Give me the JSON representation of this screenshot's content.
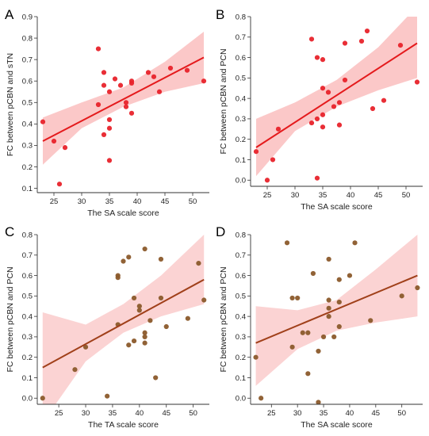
{
  "chart_data": [
    {
      "type": "scatter",
      "panel": "A",
      "xlabel": "The SA scale score",
      "ylabel": "FC between pCBN and sTN",
      "xlim": [
        22,
        53
      ],
      "ylim": [
        0.08,
        0.9
      ],
      "xticks": [
        25,
        30,
        35,
        40,
        45,
        50
      ],
      "yticks": [
        0.1,
        0.2,
        0.3,
        0.4,
        0.5,
        0.6,
        0.7,
        0.8,
        0.9
      ],
      "tick_labels_x": [
        "25",
        "30",
        "35",
        "40",
        "45",
        "50"
      ],
      "tick_labels_y": [
        "0.1",
        "0.2",
        "0.3",
        "0.4",
        "0.5",
        "0.6",
        "0.7",
        "0.8",
        "0.9"
      ],
      "point_color": "#e8232b",
      "line_color": "#e41a1c",
      "band_color": "#f9b6b6",
      "points": [
        [
          23,
          0.41
        ],
        [
          25,
          0.32
        ],
        [
          26,
          0.12
        ],
        [
          27,
          0.29
        ],
        [
          33,
          0.75
        ],
        [
          33,
          0.49
        ],
        [
          34,
          0.64
        ],
        [
          34,
          0.58
        ],
        [
          34,
          0.35
        ],
        [
          35,
          0.55
        ],
        [
          35,
          0.42
        ],
        [
          35,
          0.38
        ],
        [
          35,
          0.23
        ],
        [
          36,
          0.61
        ],
        [
          37,
          0.58
        ],
        [
          38,
          0.5
        ],
        [
          38,
          0.48
        ],
        [
          39,
          0.6
        ],
        [
          39,
          0.59
        ],
        [
          39,
          0.45
        ],
        [
          42,
          0.64
        ],
        [
          43,
          0.62
        ],
        [
          44,
          0.55
        ],
        [
          46,
          0.66
        ],
        [
          49,
          0.65
        ],
        [
          52,
          0.6
        ]
      ],
      "fit": {
        "x": [
          23,
          52
        ],
        "y": [
          0.32,
          0.71
        ]
      },
      "band": {
        "x": [
          23,
          30,
          37.5,
          45,
          52
        ],
        "lower": [
          0.21,
          0.38,
          0.48,
          0.55,
          0.59
        ],
        "upper": [
          0.43,
          0.5,
          0.57,
          0.69,
          0.83
        ]
      }
    },
    {
      "type": "scatter",
      "panel": "B",
      "xlabel": "The SA scale score",
      "ylabel": "FC between pCBN and PCN",
      "xlim": [
        22,
        53
      ],
      "ylim": [
        -0.03,
        0.8
      ],
      "xticks": [
        25,
        30,
        35,
        40,
        45,
        50
      ],
      "yticks": [
        0.0,
        0.1,
        0.2,
        0.3,
        0.4,
        0.5,
        0.6,
        0.7,
        0.8
      ],
      "tick_labels_x": [
        "25",
        "30",
        "35",
        "40",
        "45",
        "50"
      ],
      "tick_labels_y": [
        "0.0",
        "0.1",
        "0.2",
        "0.3",
        "0.4",
        "0.5",
        "0.6",
        "0.7",
        "0.8"
      ],
      "point_color": "#e8232b",
      "line_color": "#e41a1c",
      "band_color": "#f9b6b6",
      "points": [
        [
          23,
          0.14
        ],
        [
          25,
          0.0
        ],
        [
          26,
          0.1
        ],
        [
          27,
          0.25
        ],
        [
          33,
          0.69
        ],
        [
          33,
          0.28
        ],
        [
          34,
          0.6
        ],
        [
          34,
          0.3
        ],
        [
          34,
          0.01
        ],
        [
          35,
          0.59
        ],
        [
          35,
          0.45
        ],
        [
          35,
          0.32
        ],
        [
          35,
          0.26
        ],
        [
          36,
          0.43
        ],
        [
          37,
          0.36
        ],
        [
          38,
          0.38
        ],
        [
          38,
          0.27
        ],
        [
          39,
          0.67
        ],
        [
          39,
          0.49
        ],
        [
          42,
          0.68
        ],
        [
          43,
          0.73
        ],
        [
          44,
          0.35
        ],
        [
          46,
          0.39
        ],
        [
          49,
          0.66
        ],
        [
          52,
          0.48
        ]
      ],
      "fit": {
        "x": [
          23,
          52
        ],
        "y": [
          0.16,
          0.67
        ]
      },
      "band": {
        "x": [
          23,
          30,
          37.5,
          45,
          52
        ],
        "lower": [
          0.02,
          0.24,
          0.36,
          0.44,
          0.5
        ],
        "upper": [
          0.3,
          0.38,
          0.49,
          0.65,
          0.85
        ]
      }
    },
    {
      "type": "scatter",
      "panel": "C",
      "xlabel": "The TA scale score",
      "ylabel": "FC between pCBN and PCN",
      "xlim": [
        21,
        53
      ],
      "ylim": [
        -0.03,
        0.8
      ],
      "xticks": [
        25,
        30,
        35,
        40,
        45,
        50
      ],
      "yticks": [
        0.0,
        0.1,
        0.2,
        0.3,
        0.4,
        0.5,
        0.6,
        0.7,
        0.8
      ],
      "tick_labels_x": [
        "25",
        "30",
        "35",
        "40",
        "45",
        "50"
      ],
      "tick_labels_y": [
        "0.0",
        "0.1",
        "0.2",
        "0.3",
        "0.4",
        "0.5",
        "0.6",
        "0.7",
        "0.8"
      ],
      "point_color": "#8b5a2b",
      "line_color": "#a0401a",
      "band_color": "#f9c4c4",
      "points": [
        [
          22,
          0.0
        ],
        [
          28,
          0.14
        ],
        [
          30,
          0.25
        ],
        [
          34,
          0.01
        ],
        [
          36,
          0.6
        ],
        [
          36,
          0.59
        ],
        [
          36,
          0.36
        ],
        [
          37,
          0.67
        ],
        [
          38,
          0.69
        ],
        [
          38,
          0.26
        ],
        [
          39,
          0.49
        ],
        [
          39,
          0.28
        ],
        [
          40,
          0.45
        ],
        [
          40,
          0.43
        ],
        [
          41,
          0.73
        ],
        [
          41,
          0.32
        ],
        [
          41,
          0.3
        ],
        [
          41,
          0.27
        ],
        [
          42,
          0.38
        ],
        [
          43,
          0.1
        ],
        [
          44,
          0.68
        ],
        [
          44,
          0.49
        ],
        [
          45,
          0.35
        ],
        [
          49,
          0.39
        ],
        [
          51,
          0.66
        ],
        [
          52,
          0.48
        ]
      ],
      "fit": {
        "x": [
          22,
          52
        ],
        "y": [
          0.15,
          0.58
        ]
      },
      "band": {
        "x": [
          22,
          30,
          37,
          44,
          52
        ],
        "lower": [
          -0.12,
          0.18,
          0.32,
          0.4,
          0.46
        ],
        "upper": [
          0.42,
          0.36,
          0.46,
          0.6,
          0.8
        ]
      }
    },
    {
      "type": "scatter",
      "panel": "D",
      "xlabel": "The SA scale score",
      "ylabel": "FC between pCBN and PCN",
      "xlim": [
        21,
        54
      ],
      "ylim": [
        -0.03,
        0.8
      ],
      "xticks": [
        25,
        30,
        35,
        40,
        45,
        50
      ],
      "yticks": [
        0.0,
        0.1,
        0.2,
        0.3,
        0.4,
        0.5,
        0.6,
        0.7,
        0.8
      ],
      "tick_labels_x": [
        "25",
        "30",
        "35",
        "40",
        "45",
        "50"
      ],
      "tick_labels_y": [
        "0.0",
        "0.1",
        "0.2",
        "0.3",
        "0.4",
        "0.5",
        "0.6",
        "0.7",
        "0.8"
      ],
      "point_color": "#8b5a2b",
      "line_color": "#a0401a",
      "band_color": "#f9c4c4",
      "points": [
        [
          22,
          0.2
        ],
        [
          23,
          0.0
        ],
        [
          28,
          0.76
        ],
        [
          29,
          0.49
        ],
        [
          29,
          0.25
        ],
        [
          30,
          0.49
        ],
        [
          31,
          0.32
        ],
        [
          32,
          0.32
        ],
        [
          32,
          0.12
        ],
        [
          33,
          0.61
        ],
        [
          34,
          0.23
        ],
        [
          34,
          -0.02
        ],
        [
          35,
          0.3
        ],
        [
          36,
          0.68
        ],
        [
          36,
          0.48
        ],
        [
          36,
          0.44
        ],
        [
          36,
          0.4
        ],
        [
          37,
          0.3
        ],
        [
          38,
          0.58
        ],
        [
          38,
          0.47
        ],
        [
          38,
          0.35
        ],
        [
          40,
          0.6
        ],
        [
          41,
          0.76
        ],
        [
          44,
          0.38
        ],
        [
          50,
          0.5
        ],
        [
          53,
          0.54
        ]
      ],
      "fit": {
        "x": [
          22,
          53
        ],
        "y": [
          0.27,
          0.6
        ]
      },
      "band": {
        "x": [
          22,
          30,
          37.5,
          45,
          53
        ],
        "lower": [
          0.06,
          0.24,
          0.33,
          0.37,
          0.4
        ],
        "upper": [
          0.45,
          0.43,
          0.48,
          0.63,
          0.8
        ]
      }
    }
  ]
}
